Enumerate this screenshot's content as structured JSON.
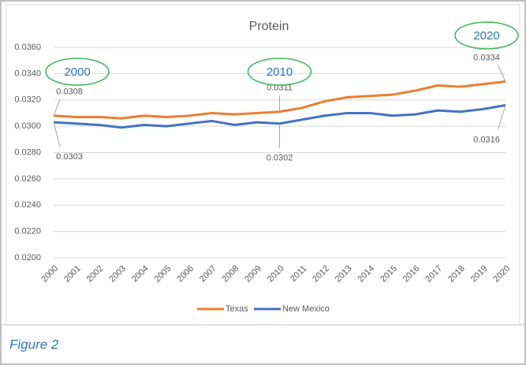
{
  "chart_data": {
    "type": "line",
    "title": "Protein",
    "caption": "Figure 2",
    "categories": [
      "2000",
      "2001",
      "2002",
      "2003",
      "2004",
      "2005",
      "2006",
      "2007",
      "2008",
      "2009",
      "2010",
      "2011",
      "2012",
      "2013",
      "2014",
      "2015",
      "2016",
      "2017",
      "2018",
      "2019",
      "2020"
    ],
    "series": [
      {
        "name": "Texas",
        "color": "#ed7d31",
        "values": [
          0.0308,
          0.0307,
          0.0307,
          0.0306,
          0.0308,
          0.0307,
          0.0308,
          0.031,
          0.0309,
          0.031,
          0.0311,
          0.0314,
          0.0319,
          0.0322,
          0.0323,
          0.0324,
          0.0327,
          0.0331,
          0.033,
          0.0332,
          0.0334
        ],
        "value_labels": [
          "0.0308",
          null,
          null,
          null,
          null,
          null,
          null,
          null,
          null,
          null,
          "0.0311",
          null,
          null,
          null,
          null,
          null,
          null,
          null,
          null,
          null,
          "0.0334"
        ]
      },
      {
        "name": "New Mexico",
        "color": "#4472c4",
        "values": [
          0.0303,
          0.0302,
          0.0301,
          0.0299,
          0.0301,
          0.03,
          0.0302,
          0.0304,
          0.0301,
          0.0303,
          0.0302,
          0.0305,
          0.0308,
          0.031,
          0.031,
          0.0308,
          0.0309,
          0.0312,
          0.0311,
          0.0313,
          0.0316
        ],
        "value_labels": [
          "0.0303",
          null,
          null,
          null,
          null,
          null,
          null,
          null,
          null,
          null,
          "0.0302",
          null,
          null,
          null,
          null,
          null,
          null,
          null,
          null,
          null,
          "0.0316"
        ]
      }
    ],
    "annotations": [
      "2000",
      "2010",
      "2020"
    ],
    "ylim": [
      0.02,
      0.036
    ],
    "yticks": [
      {
        "value": 0.02,
        "label": "0.0200"
      },
      {
        "value": 0.022,
        "label": "0.0220"
      },
      {
        "value": 0.024,
        "label": "0.0240"
      },
      {
        "value": 0.026,
        "label": "0.0260"
      },
      {
        "value": 0.028,
        "label": "0.0280"
      },
      {
        "value": 0.03,
        "label": "0.0300"
      },
      {
        "value": 0.032,
        "label": "0.0320"
      },
      {
        "value": 0.034,
        "label": "0.0340"
      },
      {
        "value": 0.036,
        "label": "0.0360"
      }
    ],
    "grid": true,
    "legend": "bottom"
  }
}
